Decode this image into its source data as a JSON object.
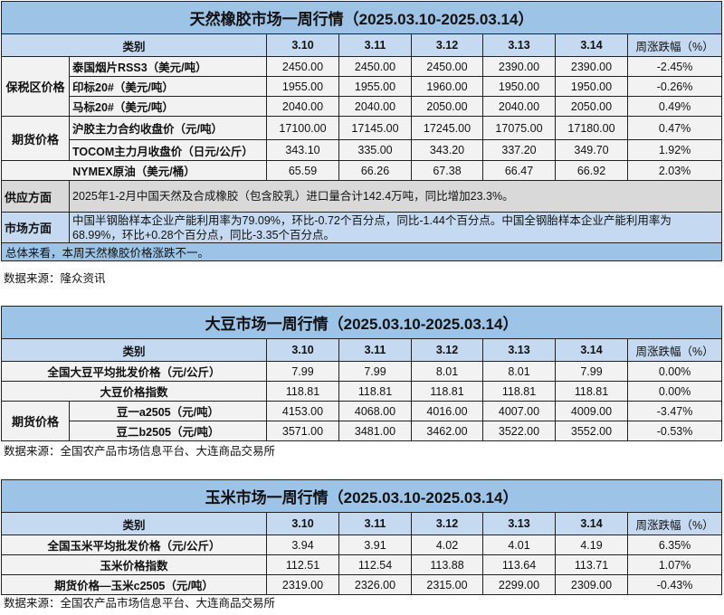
{
  "columns": [
    "类别",
    "3.10",
    "3.11",
    "3.12",
    "3.13",
    "3.14",
    "周涨跌幅（%）"
  ],
  "rubber": {
    "title": "天然橡胶市场一周行情（2025.03.10-2025.03.14）",
    "groups": [
      "保税区价格",
      "期货价格"
    ],
    "rows": [
      {
        "label": "泰国烟片RSS3（美元/吨）",
        "values": [
          "2450.00",
          "2450.00",
          "2450.00",
          "2390.00",
          "2390.00"
        ],
        "change": "-2.45%"
      },
      {
        "label": "印标20#（美元/吨）",
        "values": [
          "1955.00",
          "1955.00",
          "1960.00",
          "1950.00",
          "1950.00"
        ],
        "change": "-0.26%"
      },
      {
        "label": "马标20#（美元/吨）",
        "values": [
          "2040.00",
          "2040.00",
          "2050.00",
          "2040.00",
          "2050.00"
        ],
        "change": "0.49%"
      },
      {
        "label": "沪胶主力合约收盘价（元/吨）",
        "values": [
          "17100.00",
          "17145.00",
          "17245.00",
          "17075.00",
          "17180.00"
        ],
        "change": "0.47%"
      },
      {
        "label": "TOCOM主力月收盘价（日元/公斤）",
        "values": [
          "343.10",
          "335.00",
          "343.20",
          "337.20",
          "349.70"
        ],
        "change": "1.92%"
      },
      {
        "label": "NYMEX原油（美元/桶）",
        "values": [
          "65.59",
          "66.26",
          "67.38",
          "66.47",
          "66.92"
        ],
        "change": "2.03%"
      }
    ],
    "supply_label": "供应方面",
    "supply_text": "2025年1-2月中国天然及合成橡胶（包含胶乳）进口量合计142.4万吨，同比增加23.3%。",
    "market_label": "市场方面",
    "market_text": "中国半钢胎样本企业产能利用率为79.09%，环比-0.72个百分点，同比-1.44个百分点。中国全钢胎样本企业产能利用率为68.99%，环比+0.28个百分点，同比-3.35个百分点。",
    "summary": "总体来看，本周天然橡胶价格涨跌不一。",
    "source": "数据来源：隆众资讯"
  },
  "soybean": {
    "title": "大豆市场一周行情（2025.03.10-2025.03.14）",
    "group": "期货价格",
    "rows": [
      {
        "label": "全国大豆平均批发价格（元/公斤）",
        "values": [
          "7.99",
          "7.99",
          "8.01",
          "8.01",
          "7.99"
        ],
        "change": "0.00%"
      },
      {
        "label": "大豆价格指数",
        "values": [
          "118.81",
          "118.81",
          "118.81",
          "118.81",
          "118.81"
        ],
        "change": "0.00%"
      },
      {
        "label": "豆一a2505（元/吨）",
        "values": [
          "4153.00",
          "4068.00",
          "4016.00",
          "4007.00",
          "4009.00"
        ],
        "change": "-3.47%"
      },
      {
        "label": "豆二b2505（元/吨）",
        "values": [
          "3571.00",
          "3481.00",
          "3462.00",
          "3522.00",
          "3552.00"
        ],
        "change": "-0.53%"
      }
    ],
    "source": "数据来源：全国农产品市场信息平台、大连商品交易所"
  },
  "corn": {
    "title": "玉米市场一周行情（2025.03.10-2025.03.14）",
    "rows": [
      {
        "label": "全国玉米平均批发价格（元/公斤）",
        "values": [
          "3.94",
          "3.91",
          "4.02",
          "4.01",
          "4.19"
        ],
        "change": "6.35%"
      },
      {
        "label": "玉米价格指数",
        "values": [
          "112.51",
          "112.54",
          "113.88",
          "113.64",
          "113.71"
        ],
        "change": "1.07%"
      },
      {
        "label": "期货价格—玉米c2505（元/吨）",
        "values": [
          "2319.00",
          "2326.00",
          "2315.00",
          "2299.00",
          "2309.00"
        ],
        "change": "-0.43%"
      }
    ],
    "source": "数据来源：全国农产品市场信息平台、大连商品交易所"
  }
}
